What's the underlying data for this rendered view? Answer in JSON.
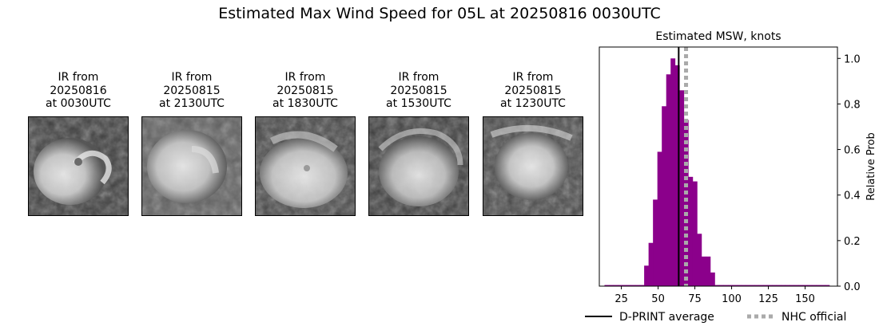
{
  "title": "Estimated Max Wind Speed for 05L at 20250816 0030UTC",
  "ir_panels": [
    {
      "caption_line1": "IR from",
      "caption_line2": "20250816",
      "caption_line3": "at 0030UTC",
      "icon": "satellite-ir-image"
    },
    {
      "caption_line1": "IR from",
      "caption_line2": "20250815",
      "caption_line3": "at 2130UTC",
      "icon": "satellite-ir-image"
    },
    {
      "caption_line1": "IR from",
      "caption_line2": "20250815",
      "caption_line3": "at 1830UTC",
      "icon": "satellite-ir-image"
    },
    {
      "caption_line1": "IR from",
      "caption_line2": "20250815",
      "caption_line3": "at 1530UTC",
      "icon": "satellite-ir-image"
    },
    {
      "caption_line1": "IR from",
      "caption_line2": "20250815",
      "caption_line3": "at 1230UTC",
      "icon": "satellite-ir-image"
    }
  ],
  "chart_data": {
    "type": "bar",
    "title": "Estimated MSW, knots",
    "xlabel": "",
    "ylabel": "Relative Prob",
    "xlim": [
      10,
      172
    ],
    "ylim": [
      0,
      1.05
    ],
    "xticks": [
      25,
      50,
      75,
      100,
      125,
      150
    ],
    "yticks": [
      0.0,
      0.2,
      0.4,
      0.6,
      0.8,
      1.0
    ],
    "bin_width": 3,
    "bar_color": "#8b008b",
    "bins": [
      {
        "x": 15,
        "value": 0.005
      },
      {
        "x": 18,
        "value": 0.005
      },
      {
        "x": 21,
        "value": 0.005
      },
      {
        "x": 24,
        "value": 0.005
      },
      {
        "x": 27,
        "value": 0.005
      },
      {
        "x": 30,
        "value": 0.005
      },
      {
        "x": 33,
        "value": 0.005
      },
      {
        "x": 36,
        "value": 0.005
      },
      {
        "x": 39,
        "value": 0.005
      },
      {
        "x": 42,
        "value": 0.09
      },
      {
        "x": 45,
        "value": 0.19
      },
      {
        "x": 48,
        "value": 0.38
      },
      {
        "x": 51,
        "value": 0.59
      },
      {
        "x": 54,
        "value": 0.79
      },
      {
        "x": 57,
        "value": 0.93
      },
      {
        "x": 60,
        "value": 1.0
      },
      {
        "x": 63,
        "value": 0.97
      },
      {
        "x": 66,
        "value": 0.86
      },
      {
        "x": 69,
        "value": 0.73
      },
      {
        "x": 72,
        "value": 0.48
      },
      {
        "x": 75,
        "value": 0.46
      },
      {
        "x": 78,
        "value": 0.23
      },
      {
        "x": 81,
        "value": 0.13
      },
      {
        "x": 84,
        "value": 0.13
      },
      {
        "x": 87,
        "value": 0.06
      },
      {
        "x": 90,
        "value": 0.005
      },
      {
        "x": 93,
        "value": 0.005
      },
      {
        "x": 96,
        "value": 0.005
      },
      {
        "x": 99,
        "value": 0.005
      },
      {
        "x": 102,
        "value": 0.005
      },
      {
        "x": 105,
        "value": 0.005
      },
      {
        "x": 108,
        "value": 0.005
      },
      {
        "x": 111,
        "value": 0.005
      },
      {
        "x": 114,
        "value": 0.005
      },
      {
        "x": 117,
        "value": 0.005
      },
      {
        "x": 120,
        "value": 0.005
      },
      {
        "x": 123,
        "value": 0.005
      },
      {
        "x": 126,
        "value": 0.005
      },
      {
        "x": 129,
        "value": 0.005
      },
      {
        "x": 132,
        "value": 0.005
      },
      {
        "x": 135,
        "value": 0.005
      },
      {
        "x": 138,
        "value": 0.005
      },
      {
        "x": 141,
        "value": 0.005
      },
      {
        "x": 144,
        "value": 0.005
      },
      {
        "x": 147,
        "value": 0.005
      },
      {
        "x": 150,
        "value": 0.005
      },
      {
        "x": 153,
        "value": 0.005
      },
      {
        "x": 156,
        "value": 0.005
      },
      {
        "x": 159,
        "value": 0.005
      },
      {
        "x": 162,
        "value": 0.005
      },
      {
        "x": 165,
        "value": 0.005
      }
    ],
    "reference_lines": [
      {
        "name": "D-PRINT average",
        "x": 64,
        "color": "#000000",
        "style": "solid"
      },
      {
        "name": "NHC official",
        "x": 69,
        "color": "#aaaaaa",
        "style": "dotted"
      }
    ],
    "legend_position": "bottom"
  }
}
